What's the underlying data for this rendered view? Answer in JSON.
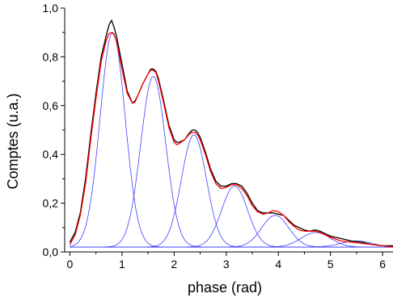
{
  "chart_data": {
    "type": "line",
    "xlabel": "phase (rad)",
    "ylabel": "Comptes (u.a.)",
    "xlim": [
      -0.1,
      6.2
    ],
    "ylim": [
      0.0,
      1.0
    ],
    "x_ticks": [
      "0",
      "1",
      "2",
      "3",
      "4",
      "5",
      "6"
    ],
    "y_ticks": [
      "0,0",
      "0,2",
      "0,4",
      "0,6",
      "0,8",
      "1,0"
    ],
    "grid": false,
    "baseline": 0.02,
    "series": [
      {
        "role": "measured",
        "color": "#000000",
        "x": [
          0.0,
          0.1,
          0.2,
          0.3,
          0.4,
          0.5,
          0.6,
          0.7,
          0.75,
          0.8,
          0.85,
          0.9,
          1.0,
          1.1,
          1.2,
          1.25,
          1.3,
          1.4,
          1.5,
          1.55,
          1.6,
          1.65,
          1.7,
          1.8,
          1.9,
          2.0,
          2.05,
          2.1,
          2.2,
          2.3,
          2.35,
          2.4,
          2.45,
          2.5,
          2.6,
          2.7,
          2.8,
          2.9,
          3.0,
          3.1,
          3.2,
          3.3,
          3.4,
          3.5,
          3.6,
          3.7,
          3.8,
          3.9,
          4.0,
          4.1,
          4.2,
          4.3,
          4.4,
          4.5,
          4.6,
          4.7,
          4.8,
          4.9,
          5.0,
          5.2,
          5.4,
          5.6,
          5.8,
          6.0,
          6.2
        ],
        "y": [
          0.04,
          0.08,
          0.16,
          0.3,
          0.48,
          0.65,
          0.8,
          0.89,
          0.93,
          0.95,
          0.92,
          0.88,
          0.77,
          0.66,
          0.61,
          0.62,
          0.64,
          0.69,
          0.73,
          0.75,
          0.75,
          0.74,
          0.71,
          0.62,
          0.52,
          0.46,
          0.45,
          0.45,
          0.46,
          0.49,
          0.5,
          0.5,
          0.49,
          0.47,
          0.41,
          0.34,
          0.29,
          0.27,
          0.27,
          0.28,
          0.28,
          0.27,
          0.24,
          0.2,
          0.17,
          0.16,
          0.16,
          0.16,
          0.155,
          0.15,
          0.13,
          0.11,
          0.1,
          0.09,
          0.085,
          0.09,
          0.085,
          0.075,
          0.065,
          0.055,
          0.045,
          0.04,
          0.03,
          0.025,
          0.025
        ]
      },
      {
        "role": "fit",
        "color": "#ff0000",
        "x": [
          0.0,
          0.1,
          0.2,
          0.3,
          0.4,
          0.5,
          0.6,
          0.7,
          0.75,
          0.8,
          0.85,
          0.9,
          1.0,
          1.1,
          1.2,
          1.25,
          1.3,
          1.4,
          1.5,
          1.55,
          1.6,
          1.65,
          1.7,
          1.8,
          1.9,
          2.0,
          2.05,
          2.1,
          2.2,
          2.3,
          2.35,
          2.4,
          2.45,
          2.5,
          2.6,
          2.7,
          2.8,
          2.9,
          3.0,
          3.1,
          3.2,
          3.3,
          3.4,
          3.5,
          3.6,
          3.7,
          3.8,
          3.9,
          4.0,
          4.1,
          4.2,
          4.3,
          4.4,
          4.5,
          4.6,
          4.7,
          4.8,
          4.9,
          5.0,
          5.2,
          5.4,
          5.6,
          5.8,
          6.0,
          6.2
        ],
        "y": [
          0.03,
          0.07,
          0.15,
          0.28,
          0.46,
          0.63,
          0.78,
          0.87,
          0.895,
          0.9,
          0.89,
          0.86,
          0.75,
          0.65,
          0.61,
          0.615,
          0.64,
          0.69,
          0.73,
          0.745,
          0.745,
          0.735,
          0.7,
          0.61,
          0.51,
          0.45,
          0.44,
          0.445,
          0.46,
          0.485,
          0.49,
          0.49,
          0.48,
          0.46,
          0.4,
          0.33,
          0.28,
          0.26,
          0.265,
          0.275,
          0.275,
          0.26,
          0.23,
          0.19,
          0.165,
          0.155,
          0.16,
          0.17,
          0.165,
          0.15,
          0.125,
          0.105,
          0.09,
          0.085,
          0.085,
          0.085,
          0.08,
          0.07,
          0.06,
          0.045,
          0.04,
          0.035,
          0.03,
          0.025,
          0.02
        ]
      }
    ],
    "components": {
      "role": "gaussian components",
      "color": "#4040ff",
      "centers": [
        0.82,
        1.6,
        2.38,
        3.16,
        3.94,
        4.72,
        5.5
      ],
      "amplitudes": [
        0.88,
        0.7,
        0.46,
        0.25,
        0.13,
        0.06,
        0.025
      ],
      "sigmas": [
        0.24,
        0.24,
        0.24,
        0.25,
        0.26,
        0.28,
        0.3
      ]
    }
  }
}
